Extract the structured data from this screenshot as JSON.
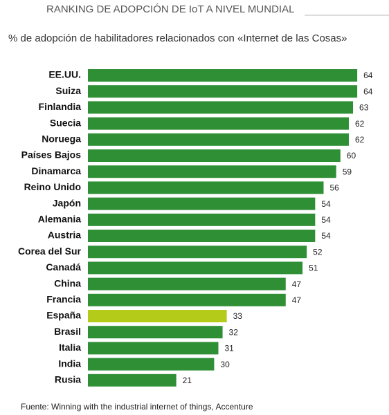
{
  "chart_data": {
    "type": "hbar",
    "title": "RANKING DE ADOPCIÓN DE IoT A NIVEL MUNDIAL",
    "subtitle": "% de adopción de habilitadores relacionados con «Internet de las Cosas»",
    "source": "Fuente: Winning with the industrial internet of things, Accenture",
    "categories": [
      "EE.UU.",
      "Suiza",
      "Finlandia",
      "Suecia",
      "Noruega",
      "Países Bajos",
      "Dinamarca",
      "Reino Unido",
      "Japón",
      "Alemania",
      "Austria",
      "Corea del Sur",
      "Canadá",
      "China",
      "Francia",
      "España",
      "Brasil",
      "Italia",
      "India",
      "Rusia"
    ],
    "values": [
      64,
      64,
      63,
      62,
      62,
      60,
      59,
      56,
      54,
      54,
      54,
      52,
      51,
      47,
      47,
      33,
      32,
      31,
      30,
      21
    ],
    "colors": [
      "#2f8f35",
      "#2f8f35",
      "#2f8f35",
      "#2f8f35",
      "#2f8f35",
      "#2f8f35",
      "#2f8f35",
      "#2f8f35",
      "#2f8f35",
      "#2f8f35",
      "#2f8f35",
      "#2f8f35",
      "#2f8f35",
      "#2f8f35",
      "#2f8f35",
      "#b5cb1a",
      "#2f8f35",
      "#2f8f35",
      "#2f8f35",
      "#2f8f35"
    ]
  }
}
